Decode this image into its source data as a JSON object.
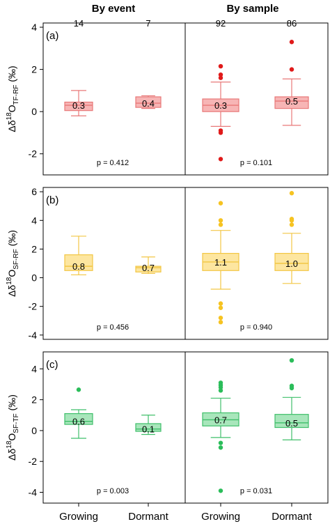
{
  "header": {
    "left": "By event",
    "right": "By sample"
  },
  "counts": [
    "14",
    "7",
    "92",
    "86"
  ],
  "x_tick_labels": [
    "Growing",
    "Dormant",
    "Growing",
    "Dormant"
  ],
  "chart_data": [
    {
      "type": "box",
      "panel_label": "(a)",
      "ylabel_parts": {
        "delta": "Δδ",
        "sup": "18",
        "o": "O",
        "sub": "TF-RF",
        "unit": " (‰)"
      },
      "ylim": [
        -3.0,
        4.2
      ],
      "yticks": [
        -2,
        0,
        2,
        4
      ],
      "color": {
        "fill": "#f7b5b5",
        "stroke": "#e87878",
        "outlier": "#e01a1a"
      },
      "groups": [
        {
          "category": "Growing",
          "facet": "By event",
          "n": "14",
          "whisker_low": -0.2,
          "q1": 0.05,
          "median": 0.3,
          "q3": 0.45,
          "whisker_high": 1.0,
          "mean_label": "0.3",
          "outliers": []
        },
        {
          "category": "Dormant",
          "facet": "By event",
          "n": "7",
          "whisker_low": 0.15,
          "q1": 0.2,
          "median": 0.4,
          "q3": 0.7,
          "whisker_high": 0.75,
          "mean_label": "0.4",
          "outliers": []
        },
        {
          "category": "Growing",
          "facet": "By sample",
          "n": "92",
          "whisker_low": -0.7,
          "q1": 0.0,
          "median": 0.3,
          "q3": 0.6,
          "whisker_high": 1.4,
          "mean_label": "0.3",
          "outliers": [
            2.15,
            1.75,
            1.6,
            -0.9,
            -1.0,
            -2.25
          ]
        },
        {
          "category": "Dormant",
          "facet": "By sample",
          "n": "86",
          "whisker_low": -0.65,
          "q1": 0.15,
          "median": 0.5,
          "q3": 0.7,
          "whisker_high": 1.55,
          "mean_label": "0.5",
          "outliers": [
            3.3,
            2.0
          ]
        }
      ],
      "pvalues": [
        "p = 0.412",
        "p = 0.101"
      ]
    },
    {
      "type": "box",
      "panel_label": "(b)",
      "ylabel_parts": {
        "delta": "Δδ",
        "sup": "18",
        "o": "O",
        "sub": "SF-RF",
        "unit": " (‰)"
      },
      "ylim": [
        -4.3,
        6.3
      ],
      "yticks": [
        -4,
        -2,
        0,
        2,
        4,
        6
      ],
      "color": {
        "fill": "#fde6a0",
        "stroke": "#f2c644",
        "outlier": "#f6c321"
      },
      "groups": [
        {
          "category": "Growing",
          "facet": "By event",
          "n": "14",
          "whisker_low": 0.2,
          "q1": 0.5,
          "median": 0.8,
          "q3": 1.6,
          "whisker_high": 2.9,
          "mean_label": "0.8",
          "outliers": []
        },
        {
          "category": "Dormant",
          "facet": "By event",
          "n": "7",
          "whisker_low": 0.3,
          "q1": 0.4,
          "median": 0.7,
          "q3": 0.8,
          "whisker_high": 1.45,
          "mean_label": "0.7",
          "outliers": []
        },
        {
          "category": "Growing",
          "facet": "By sample",
          "n": "92",
          "whisker_low": -0.8,
          "q1": 0.5,
          "median": 1.1,
          "q3": 1.7,
          "whisker_high": 3.3,
          "mean_label": "1.1",
          "outliers": [
            5.2,
            4.0,
            3.7,
            -1.8,
            -2.1,
            -2.8,
            -3.1
          ]
        },
        {
          "category": "Dormant",
          "facet": "By sample",
          "n": "86",
          "whisker_low": -0.4,
          "q1": 0.5,
          "median": 1.0,
          "q3": 1.7,
          "whisker_high": 3.1,
          "mean_label": "1.0",
          "outliers": [
            5.9,
            4.1,
            4.0,
            3.7
          ]
        }
      ],
      "pvalues": [
        "p = 0.456",
        "p = 0.940"
      ]
    },
    {
      "type": "box",
      "panel_label": "(c)",
      "ylabel_parts": {
        "delta": "Δδ",
        "sup": "18",
        "o": "O",
        "sub": "SF-TF",
        "unit": " (‰)"
      },
      "ylim": [
        -4.7,
        5.1
      ],
      "yticks": [
        -4,
        -2,
        0,
        2,
        4
      ],
      "color": {
        "fill": "#a8e6bb",
        "stroke": "#3fbf6a",
        "outlier": "#2bbd5a"
      },
      "groups": [
        {
          "category": "Growing",
          "facet": "By event",
          "n": "14",
          "whisker_low": -0.5,
          "q1": 0.4,
          "median": 0.6,
          "q3": 1.1,
          "whisker_high": 1.35,
          "mean_label": "0.6",
          "outliers": [
            2.65
          ]
        },
        {
          "category": "Dormant",
          "facet": "By event",
          "n": "7",
          "whisker_low": -0.25,
          "q1": -0.05,
          "median": 0.1,
          "q3": 0.45,
          "whisker_high": 1.0,
          "mean_label": "0.1",
          "outliers": []
        },
        {
          "category": "Growing",
          "facet": "By sample",
          "n": "92",
          "whisker_low": -0.45,
          "q1": 0.3,
          "median": 0.7,
          "q3": 1.15,
          "whisker_high": 2.1,
          "mean_label": "0.7",
          "outliers": [
            3.1,
            2.95,
            2.8,
            2.6,
            -0.8,
            -1.1,
            -3.9
          ]
        },
        {
          "category": "Dormant",
          "facet": "By sample",
          "n": "86",
          "whisker_low": -0.6,
          "q1": 0.2,
          "median": 0.5,
          "q3": 1.05,
          "whisker_high": 2.15,
          "mean_label": "0.5",
          "outliers": [
            4.55,
            2.9,
            2.75
          ]
        }
      ],
      "pvalues": [
        "p = 0.003",
        "p = 0.031"
      ]
    }
  ]
}
